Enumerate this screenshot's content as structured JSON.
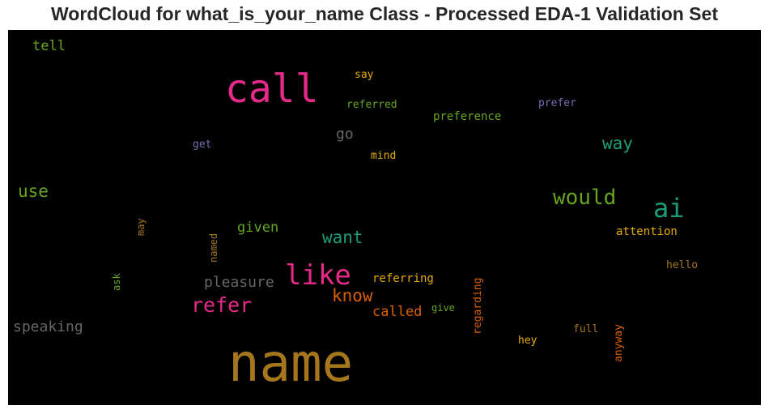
{
  "chart_data": {
    "type": "wordcloud",
    "title": "WordCloud for what_is_your_name Class - Processed EDA-1 Validation Set",
    "background": "#000000",
    "words": [
      {
        "text": "name",
        "color": "#a6761d"
      },
      {
        "text": "call",
        "color": "#e7298a"
      },
      {
        "text": "like",
        "color": "#e7298a"
      },
      {
        "text": "ai",
        "color": "#1b9e77"
      },
      {
        "text": "would",
        "color": "#66a61e"
      },
      {
        "text": "refer",
        "color": "#e7298a"
      },
      {
        "text": "want",
        "color": "#1b9e77"
      },
      {
        "text": "know",
        "color": "#d95f02"
      },
      {
        "text": "way",
        "color": "#1b9e77"
      },
      {
        "text": "use",
        "color": "#66a61e"
      },
      {
        "text": "speaking",
        "color": "#666666"
      },
      {
        "text": "pleasure",
        "color": "#666666"
      },
      {
        "text": "called",
        "color": "#d95f02"
      },
      {
        "text": "given",
        "color": "#66a61e"
      },
      {
        "text": "go",
        "color": "#666666"
      },
      {
        "text": "tell",
        "color": "#66a61e"
      },
      {
        "text": "referring",
        "color": "#e6ab02"
      },
      {
        "text": "attention",
        "color": "#e6ab02"
      },
      {
        "text": "say",
        "color": "#e6ab02"
      },
      {
        "text": "referred",
        "color": "#66a61e"
      },
      {
        "text": "preference",
        "color": "#66a61e"
      },
      {
        "text": "prefer",
        "color": "#7570b3"
      },
      {
        "text": "mind",
        "color": "#e6ab02"
      },
      {
        "text": "get",
        "color": "#7570b3"
      },
      {
        "text": "hello",
        "color": "#a6761d"
      },
      {
        "text": "hey",
        "color": "#e6ab02"
      },
      {
        "text": "full",
        "color": "#a6761d"
      },
      {
        "text": "give",
        "color": "#66a61e"
      },
      {
        "text": "regarding",
        "color": "#d95f02"
      },
      {
        "text": "anyway",
        "color": "#d95f02"
      },
      {
        "text": "named",
        "color": "#a6761d"
      },
      {
        "text": "may",
        "color": "#a6761d"
      },
      {
        "text": "ask",
        "color": "#66a61e"
      }
    ]
  }
}
